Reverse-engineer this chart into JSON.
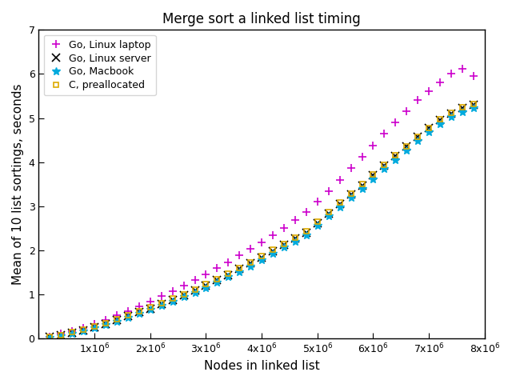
{
  "title": "Merge sort a linked list timing",
  "xlabel": "Nodes in linked list",
  "ylabel": "Mean of 10 list sortings, seconds",
  "xlim": [
    0,
    8000000
  ],
  "ylim": [
    0,
    7
  ],
  "yticks": [
    0,
    1,
    2,
    3,
    4,
    5,
    6,
    7
  ],
  "series": [
    {
      "label": "Go, Linux laptop",
      "color": "#cc00cc",
      "marker": "+",
      "markersize": 7,
      "markeredgewidth": 1.2,
      "x": [
        200000,
        400000,
        600000,
        800000,
        1000000,
        1200000,
        1400000,
        1600000,
        1800000,
        2000000,
        2200000,
        2400000,
        2600000,
        2800000,
        3000000,
        3200000,
        3400000,
        3600000,
        3800000,
        4000000,
        4200000,
        4400000,
        4600000,
        4800000,
        5000000,
        5200000,
        5400000,
        5600000,
        5800000,
        6000000,
        6200000,
        6400000,
        6600000,
        6800000,
        7000000,
        7200000,
        7400000,
        7600000,
        7800000
      ],
      "y": [
        0.04,
        0.1,
        0.17,
        0.24,
        0.32,
        0.42,
        0.52,
        0.62,
        0.73,
        0.84,
        0.96,
        1.07,
        1.19,
        1.32,
        1.46,
        1.6,
        1.73,
        1.88,
        2.03,
        2.18,
        2.34,
        2.51,
        2.68,
        2.86,
        3.1,
        3.34,
        3.6,
        3.86,
        4.12,
        4.38,
        4.65,
        4.9,
        5.15,
        5.4,
        5.6,
        5.8,
        6.0,
        6.11,
        5.95
      ]
    },
    {
      "label": "Go, Linux server",
      "color": "#000000",
      "marker": "x",
      "markersize": 7,
      "markeredgewidth": 1.2,
      "x": [
        200000,
        400000,
        600000,
        800000,
        1000000,
        1200000,
        1400000,
        1600000,
        1800000,
        2000000,
        2200000,
        2400000,
        2600000,
        2800000,
        3000000,
        3200000,
        3400000,
        3600000,
        3800000,
        4000000,
        4200000,
        4400000,
        4600000,
        4800000,
        5000000,
        5200000,
        5400000,
        5600000,
        5800000,
        6000000,
        6200000,
        6400000,
        6600000,
        6800000,
        7000000,
        7200000,
        7400000,
        7600000,
        7800000
      ],
      "y": [
        0.03,
        0.08,
        0.13,
        0.19,
        0.25,
        0.33,
        0.41,
        0.5,
        0.59,
        0.68,
        0.78,
        0.88,
        0.98,
        1.09,
        1.2,
        1.32,
        1.44,
        1.57,
        1.7,
        1.84,
        1.98,
        2.12,
        2.26,
        2.4,
        2.62,
        2.84,
        3.05,
        3.26,
        3.47,
        3.7,
        3.92,
        4.14,
        4.35,
        4.57,
        4.77,
        4.95,
        5.1,
        5.22,
        5.3
      ]
    },
    {
      "label": "Go, Macbook",
      "color": "#00aadd",
      "marker": "*",
      "markersize": 7,
      "markeredgewidth": 1.0,
      "x": [
        200000,
        400000,
        600000,
        800000,
        1000000,
        1200000,
        1400000,
        1600000,
        1800000,
        2000000,
        2200000,
        2400000,
        2600000,
        2800000,
        3000000,
        3200000,
        3400000,
        3600000,
        3800000,
        4000000,
        4200000,
        4400000,
        4600000,
        4800000,
        5000000,
        5200000,
        5400000,
        5600000,
        5800000,
        6000000,
        6200000,
        6400000,
        6600000,
        6800000,
        7000000,
        7200000,
        7400000,
        7600000,
        7800000
      ],
      "y": [
        0.02,
        0.06,
        0.11,
        0.17,
        0.23,
        0.3,
        0.38,
        0.47,
        0.56,
        0.65,
        0.74,
        0.84,
        0.94,
        1.04,
        1.15,
        1.27,
        1.39,
        1.51,
        1.64,
        1.77,
        1.92,
        2.06,
        2.2,
        2.34,
        2.56,
        2.77,
        2.98,
        3.19,
        3.4,
        3.62,
        3.84,
        4.05,
        4.26,
        4.48,
        4.68,
        4.87,
        5.02,
        5.14,
        5.22
      ]
    },
    {
      "label": "C, preallocated",
      "color": "#ddaa00",
      "marker": "s",
      "markersize": 5,
      "markeredgewidth": 1.2,
      "markerfacecolor": "none",
      "x": [
        200000,
        400000,
        600000,
        800000,
        1000000,
        1200000,
        1400000,
        1600000,
        1800000,
        2000000,
        2200000,
        2400000,
        2600000,
        2800000,
        3000000,
        3200000,
        3400000,
        3600000,
        3800000,
        4000000,
        4200000,
        4400000,
        4600000,
        4800000,
        5000000,
        5200000,
        5400000,
        5600000,
        5800000,
        6000000,
        6200000,
        6400000,
        6600000,
        6800000,
        7000000,
        7200000,
        7400000,
        7600000,
        7800000
      ],
      "y": [
        0.03,
        0.08,
        0.14,
        0.2,
        0.27,
        0.35,
        0.43,
        0.52,
        0.61,
        0.7,
        0.8,
        0.9,
        1.0,
        1.11,
        1.23,
        1.35,
        1.47,
        1.6,
        1.73,
        1.87,
        2.01,
        2.15,
        2.29,
        2.43,
        2.65,
        2.87,
        3.08,
        3.29,
        3.5,
        3.72,
        3.94,
        4.15,
        4.36,
        4.58,
        4.78,
        4.97,
        5.12,
        5.24,
        5.32
      ]
    }
  ]
}
